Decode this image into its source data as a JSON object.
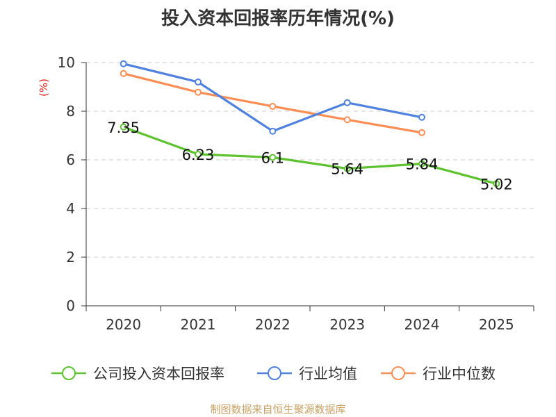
{
  "chart_data": {
    "type": "line",
    "title": "投入资本回报率历年情况(%)",
    "ylabel": "(%)",
    "xlabel": "",
    "categories": [
      "2020",
      "2021",
      "2022",
      "2023",
      "2024",
      "2025"
    ],
    "ylim": [
      0,
      10
    ],
    "yticks": [
      0,
      2,
      4,
      6,
      8,
      10
    ],
    "grid": true,
    "legend_position": "bottom",
    "series": [
      {
        "name": "公司投入资本回报率",
        "color": "#5cc22d",
        "values": [
          7.35,
          6.23,
          6.1,
          5.64,
          5.84,
          5.02
        ],
        "labels": [
          "7.35",
          "6.23",
          "6.1",
          "5.64",
          "5.84",
          "5.02"
        ],
        "show_labels": true
      },
      {
        "name": "行业均值",
        "color": "#4f81df",
        "values": [
          9.95,
          9.2,
          7.18,
          8.35,
          7.75,
          null
        ],
        "show_labels": false
      },
      {
        "name": "行业中位数",
        "color": "#fb8e55",
        "values": [
          9.55,
          8.78,
          8.2,
          7.65,
          7.12,
          null
        ],
        "show_labels": false
      }
    ],
    "source": "制图数据来自恒生聚源数据库"
  },
  "colors": {
    "axis": "#333333",
    "grid": "#cccccc",
    "ylabel": "#e0201a",
    "source": "#c8a062"
  }
}
